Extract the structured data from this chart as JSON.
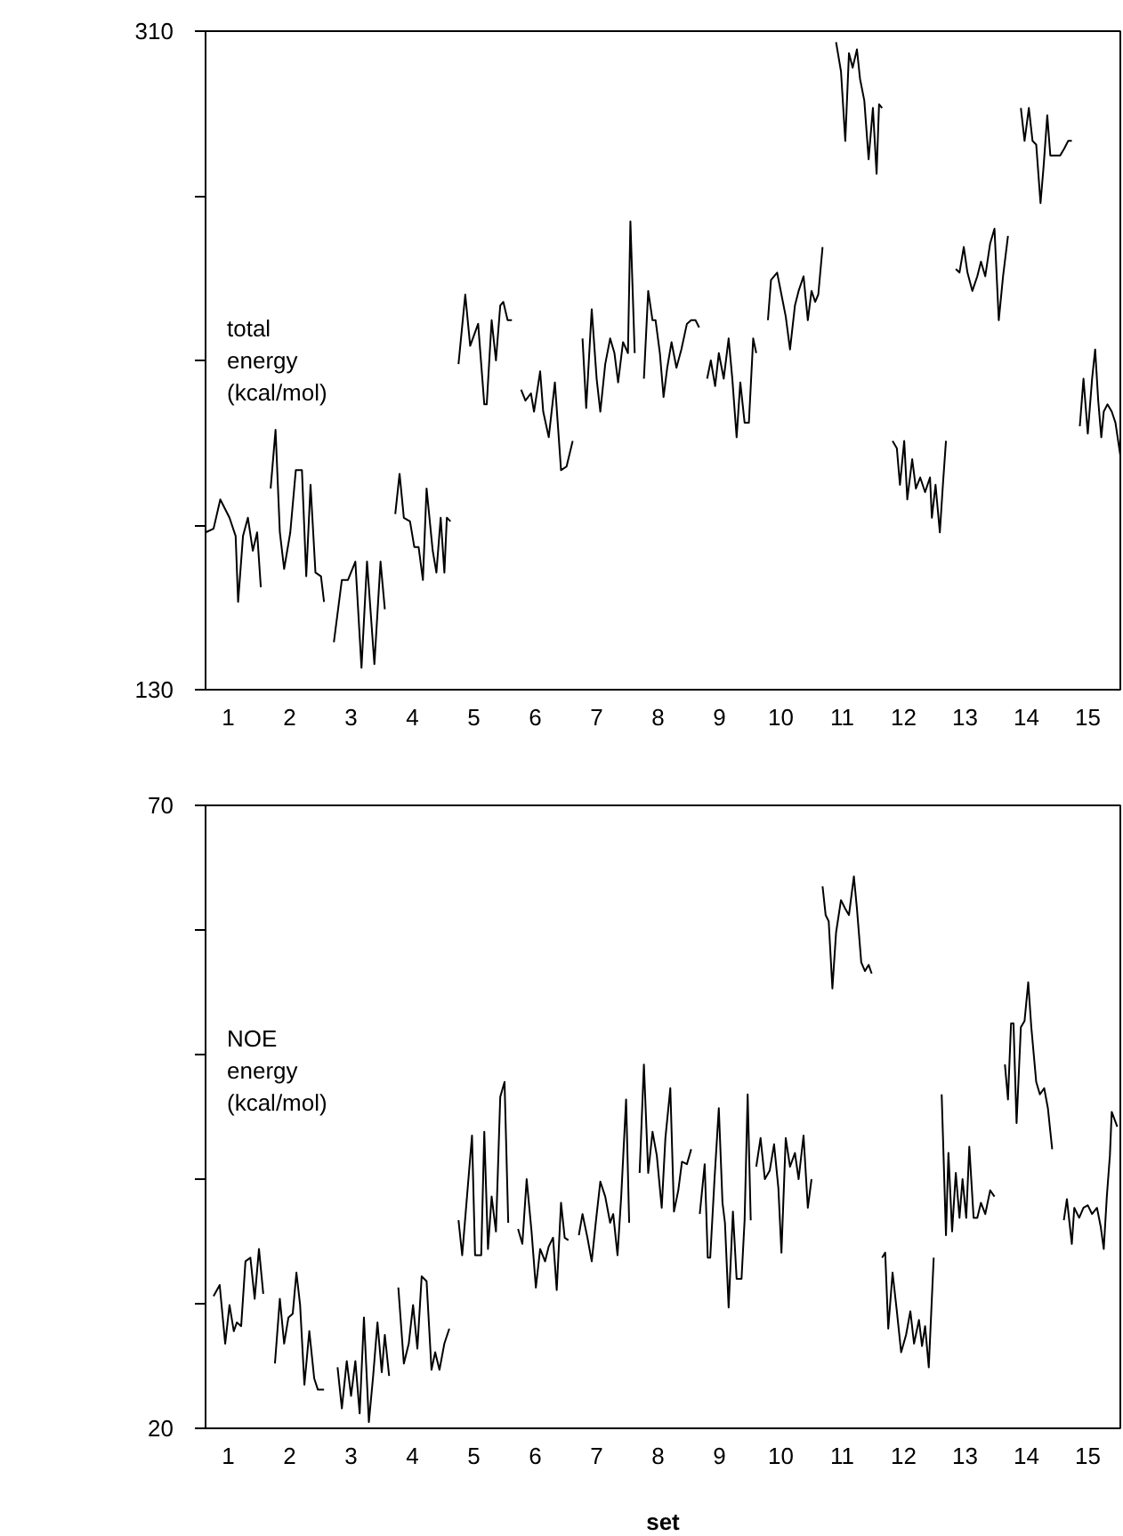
{
  "chart_data": [
    {
      "type": "line",
      "ylabel": "total energy (kcal/mol)",
      "xlim": [
        0.63,
        15.53
      ],
      "xticks": [
        1,
        2,
        3,
        4,
        5,
        6,
        7,
        8,
        9,
        10,
        11,
        12,
        13,
        14,
        15
      ],
      "ylim": [
        130,
        310
      ],
      "yticks": [
        130,
        {
          "value": 175,
          "label": null
        },
        {
          "value": 220,
          "label": null
        },
        {
          "value": 265,
          "label": null
        },
        310
      ],
      "series": [
        {
          "color": "#000000",
          "x": [
            0.63,
            0.76,
            0.87,
            1.02,
            1.12,
            1.16,
            1.24,
            1.32,
            1.4,
            1.47,
            1.53
          ],
          "values": [
            173,
            174,
            182,
            177,
            172,
            154,
            172,
            177,
            168,
            173,
            158
          ]
        },
        {
          "color": "#000000",
          "x": [
            1.69,
            1.77,
            1.84,
            1.91,
            2.01,
            2.1,
            2.2,
            2.27,
            2.34,
            2.42,
            2.51,
            2.56
          ],
          "values": [
            185,
            201,
            173,
            163,
            173,
            190,
            190,
            161,
            186,
            162,
            161,
            154
          ]
        },
        {
          "color": "#000000",
          "x": [
            2.72,
            2.85,
            2.95,
            3.07,
            3.17,
            3.26,
            3.38,
            3.48,
            3.55
          ],
          "values": [
            143,
            160,
            160,
            165,
            136,
            165,
            137,
            165,
            152
          ]
        },
        {
          "color": "#000000",
          "x": [
            3.72,
            3.79,
            3.86,
            3.96,
            4.03,
            4.1,
            4.17,
            4.23,
            4.33,
            4.39,
            4.46,
            4.52,
            4.56,
            4.62
          ],
          "values": [
            178,
            189,
            177,
            176,
            169,
            169,
            160,
            185,
            168,
            162,
            177,
            162,
            177,
            176
          ]
        },
        {
          "color": "#000000",
          "x": [
            4.75,
            4.86,
            4.94,
            5.07,
            5.17,
            5.21,
            5.29,
            5.36,
            5.43,
            5.48,
            5.55,
            5.62
          ],
          "values": [
            219,
            238,
            224,
            230,
            208,
            208,
            231,
            220,
            235,
            236,
            231,
            231
          ]
        },
        {
          "color": "#000000",
          "x": [
            5.77,
            5.84,
            5.93,
            5.98,
            6.08,
            6.13,
            6.22,
            6.32,
            6.42,
            6.51,
            6.61
          ],
          "values": [
            212,
            209,
            211,
            206,
            217,
            206,
            199,
            214,
            190,
            191,
            198
          ]
        },
        {
          "color": "#000000",
          "x": [
            6.77,
            6.83,
            6.92,
            7.0,
            7.06,
            7.14,
            7.22,
            7.29,
            7.35,
            7.43,
            7.51,
            7.55,
            7.62
          ],
          "values": [
            226,
            207,
            234,
            215,
            206,
            219,
            226,
            222,
            214,
            225,
            222,
            258,
            222
          ]
        },
        {
          "color": "#000000",
          "x": [
            7.77,
            7.84,
            7.91,
            7.96,
            8.03,
            8.09,
            8.15,
            8.22,
            8.3,
            8.38,
            8.47,
            8.54,
            8.61,
            8.67
          ],
          "values": [
            215,
            239,
            231,
            231,
            222,
            210,
            218,
            225,
            218,
            223,
            230,
            231,
            231,
            229
          ]
        },
        {
          "color": "#000000",
          "x": [
            8.8,
            8.86,
            8.93,
            8.99,
            9.07,
            9.15,
            9.21,
            9.28,
            9.34,
            9.41,
            9.48,
            9.55,
            9.6
          ],
          "values": [
            215,
            220,
            213,
            222,
            215,
            226,
            215,
            199,
            214,
            203,
            203,
            226,
            222
          ]
        },
        {
          "color": "#000000",
          "x": [
            9.79,
            9.84,
            9.94,
            10.01,
            10.08,
            10.15,
            10.23,
            10.29,
            10.37,
            10.44,
            10.5,
            10.56,
            10.61,
            10.68
          ],
          "values": [
            231,
            242,
            244,
            238,
            232,
            223,
            235,
            239,
            243,
            231,
            239,
            236,
            238,
            251
          ]
        },
        {
          "color": "#000000",
          "x": [
            10.9,
            10.98,
            11.05,
            11.11,
            11.17,
            11.24,
            11.29,
            11.36,
            11.43,
            11.5,
            11.56,
            11.6,
            11.65
          ],
          "values": [
            307,
            299,
            280,
            304,
            300,
            305,
            297,
            291,
            275,
            289,
            271,
            290,
            289
          ]
        },
        {
          "color": "#000000",
          "x": [
            11.82,
            11.89,
            11.94,
            12.01,
            12.06,
            12.14,
            12.2,
            12.27,
            12.35,
            12.43,
            12.46,
            12.52,
            12.59,
            12.64,
            12.69
          ],
          "values": [
            198,
            196,
            186,
            198,
            182,
            193,
            185,
            188,
            184,
            188,
            177,
            186,
            173,
            186,
            198
          ]
        },
        {
          "color": "#000000",
          "x": [
            12.85,
            12.91,
            12.98,
            13.04,
            13.12,
            13.2,
            13.26,
            13.33,
            13.41,
            13.48,
            13.55,
            13.62,
            13.7
          ],
          "values": [
            245,
            244,
            251,
            244,
            239,
            243,
            247,
            243,
            252,
            256,
            231,
            243,
            254
          ]
        },
        {
          "color": "#000000",
          "x": [
            13.91,
            13.97,
            14.04,
            14.1,
            14.16,
            14.23,
            14.28,
            14.34,
            14.39,
            14.47,
            14.55,
            14.62,
            14.68,
            14.74
          ],
          "values": [
            289,
            280,
            289,
            280,
            279,
            263,
            273,
            287,
            276,
            276,
            276,
            278,
            280,
            280
          ]
        },
        {
          "color": "#000000",
          "x": [
            14.87,
            14.93,
            15.0,
            15.07,
            15.12,
            15.17,
            15.22,
            15.26,
            15.32,
            15.39,
            15.45,
            15.53
          ],
          "values": [
            202,
            215,
            200,
            215,
            223,
            209,
            199,
            206,
            208,
            206,
            203,
            194
          ]
        }
      ]
    },
    {
      "type": "line",
      "xlabel": "set",
      "ylabel": "NOE energy (kcal/mol)",
      "xlim": [
        0.63,
        15.53
      ],
      "xticks": [
        1,
        2,
        3,
        4,
        5,
        6,
        7,
        8,
        9,
        10,
        11,
        12,
        13,
        14,
        15
      ],
      "ylim": [
        20,
        70
      ],
      "yticks": [
        20,
        {
          "value": 30,
          "label": null
        },
        {
          "value": 40,
          "label": null
        },
        {
          "value": 50,
          "label": null
        },
        {
          "value": 60,
          "label": null
        },
        70
      ],
      "series": [
        {
          "color": "#000000",
          "x": [
            0.76,
            0.86,
            0.95,
            1.02,
            1.09,
            1.14,
            1.21,
            1.28,
            1.36,
            1.43,
            1.5,
            1.57
          ],
          "values": [
            30.6,
            31.5,
            26.8,
            29.9,
            27.8,
            28.5,
            28.2,
            33.4,
            33.7,
            30.4,
            34.4,
            30.8
          ]
        },
        {
          "color": "#000000",
          "x": [
            1.76,
            1.84,
            1.91,
            1.98,
            2.05,
            2.11,
            2.17,
            2.24,
            2.32,
            2.4,
            2.46,
            2.56
          ],
          "values": [
            25.2,
            30.4,
            26.8,
            28.9,
            29.2,
            32.5,
            29.9,
            23.5,
            27.8,
            24.0,
            23.1,
            23.1
          ]
        },
        {
          "color": "#000000",
          "x": [
            2.78,
            2.85,
            2.93,
            3.0,
            3.07,
            3.14,
            3.21,
            3.29,
            3.36,
            3.43,
            3.5,
            3.55,
            3.62
          ],
          "values": [
            24.9,
            21.6,
            25.4,
            22.6,
            25.4,
            21.2,
            28.9,
            20.5,
            24.2,
            28.5,
            24.5,
            27.5,
            24.2
          ]
        },
        {
          "color": "#000000",
          "x": [
            3.77,
            3.86,
            3.94,
            4.01,
            4.08,
            4.15,
            4.23,
            4.31,
            4.37,
            4.44,
            4.52,
            4.6
          ],
          "values": [
            31.3,
            25.2,
            26.8,
            29.9,
            26.4,
            32.2,
            31.8,
            24.7,
            26.1,
            24.7,
            26.8,
            28.0
          ]
        },
        {
          "color": "#000000",
          "x": [
            4.75,
            4.81,
            4.88,
            4.97,
            5.02,
            5.12,
            5.17,
            5.23,
            5.29,
            5.36,
            5.43,
            5.5,
            5.56
          ],
          "values": [
            36.7,
            33.9,
            38.1,
            43.5,
            33.9,
            33.9,
            43.8,
            34.4,
            38.6,
            35.8,
            46.6,
            47.8,
            36.5
          ]
        },
        {
          "color": "#000000",
          "x": [
            5.72,
            5.79,
            5.86,
            5.94,
            6.01,
            6.08,
            6.16,
            6.22,
            6.29,
            6.35,
            6.42,
            6.48,
            6.54
          ],
          "values": [
            36.0,
            34.8,
            40.0,
            35.8,
            31.3,
            34.4,
            33.4,
            34.6,
            35.3,
            31.1,
            38.1,
            35.3,
            35.1
          ]
        },
        {
          "color": "#000000",
          "x": [
            6.71,
            6.77,
            6.85,
            6.92,
            6.99,
            7.06,
            7.14,
            7.22,
            7.27,
            7.34,
            7.4,
            7.48,
            7.53
          ],
          "values": [
            35.5,
            37.2,
            35.3,
            33.4,
            36.7,
            39.8,
            38.6,
            36.5,
            37.2,
            33.9,
            38.6,
            46.4,
            36.5
          ]
        },
        {
          "color": "#000000",
          "x": [
            7.7,
            7.77,
            7.84,
            7.91,
            7.98,
            8.06,
            8.12,
            8.2,
            8.26,
            8.33,
            8.39,
            8.47,
            8.54
          ],
          "values": [
            40.5,
            49.2,
            40.5,
            43.8,
            41.9,
            37.7,
            43.3,
            47.3,
            37.4,
            39.1,
            41.4,
            41.2,
            42.4
          ]
        },
        {
          "color": "#000000",
          "x": [
            8.68,
            8.76,
            8.81,
            8.85,
            8.92,
            8.99,
            9.05,
            9.09,
            9.15,
            9.22,
            9.28,
            9.36,
            9.41,
            9.46,
            9.51
          ],
          "values": [
            37.2,
            41.2,
            33.7,
            33.7,
            40.0,
            45.7,
            38.1,
            36.5,
            29.7,
            37.4,
            32.0,
            32.0,
            36.7,
            46.8,
            36.7
          ]
        },
        {
          "color": "#000000",
          "x": [
            9.6,
            9.67,
            9.74,
            9.82,
            9.89,
            9.96,
            10.01,
            10.08,
            10.15,
            10.23,
            10.29,
            10.37,
            10.44,
            10.5
          ],
          "values": [
            41.0,
            43.3,
            40.0,
            40.7,
            42.8,
            39.3,
            34.1,
            43.3,
            41.0,
            42.1,
            40.0,
            43.5,
            37.7,
            40.0
          ]
        },
        {
          "color": "#000000",
          "x": [
            10.68,
            10.73,
            10.78,
            10.84,
            10.9,
            10.98,
            11.05,
            11.11,
            11.19,
            11.24,
            11.31,
            11.37,
            11.43,
            11.48
          ],
          "values": [
            63.5,
            61.2,
            60.7,
            55.3,
            59.8,
            62.4,
            61.7,
            61.2,
            64.3,
            61.7,
            57.4,
            56.7,
            57.2,
            56.5
          ]
        },
        {
          "color": "#000000",
          "x": [
            11.65,
            11.7,
            11.75,
            11.82,
            11.89,
            11.96,
            12.04,
            12.11,
            12.17,
            12.25,
            12.3,
            12.35,
            12.41,
            12.49
          ],
          "values": [
            33.7,
            34.1,
            28.0,
            32.5,
            29.4,
            26.1,
            27.5,
            29.4,
            26.8,
            28.7,
            26.6,
            28.2,
            24.9,
            33.7
          ]
        },
        {
          "color": "#000000",
          "x": [
            12.62,
            12.69,
            12.73,
            12.79,
            12.85,
            12.91,
            12.96,
            13.02,
            13.07,
            13.14,
            13.2,
            13.26,
            13.33,
            13.41,
            13.48
          ],
          "values": [
            46.8,
            35.5,
            42.1,
            35.8,
            40.5,
            36.9,
            40.0,
            36.9,
            42.6,
            36.9,
            36.9,
            38.1,
            37.2,
            39.1,
            38.6
          ]
        },
        {
          "color": "#000000",
          "x": [
            13.65,
            13.7,
            13.75,
            13.79,
            13.84,
            13.91,
            13.97,
            14.03,
            14.08,
            14.16,
            14.22,
            14.29,
            14.35,
            14.42
          ],
          "values": [
            49.2,
            46.4,
            52.5,
            52.5,
            44.5,
            52.2,
            52.7,
            55.8,
            52.2,
            47.8,
            46.8,
            47.3,
            45.7,
            42.4
          ]
        },
        {
          "color": "#000000",
          "x": [
            14.61,
            14.66,
            14.74,
            14.78,
            14.86,
            14.93,
            15.0,
            15.07,
            15.15,
            15.21,
            15.26,
            15.31,
            15.36,
            15.39,
            15.48
          ],
          "values": [
            36.7,
            38.4,
            34.8,
            37.7,
            36.9,
            37.7,
            37.9,
            37.2,
            37.7,
            36.2,
            34.4,
            38.6,
            41.9,
            45.4,
            44.2
          ]
        }
      ]
    }
  ]
}
